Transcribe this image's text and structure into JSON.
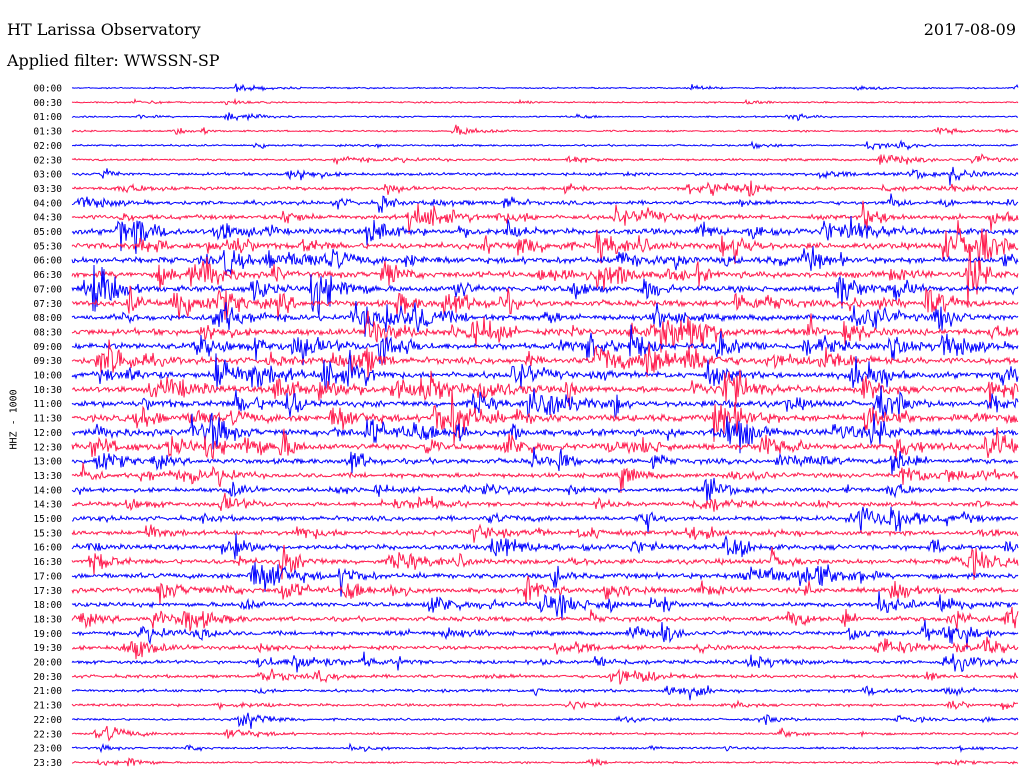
{
  "header": {
    "title": "HT Larissa Observatory",
    "date": "2017-08-09",
    "filter": "Applied filter: WWSSN-SP"
  },
  "channel_label": "HHZ - 1000",
  "colors": {
    "even_trace": "#0000ff",
    "odd_trace": "#ff1a4d",
    "background": "#ffffff"
  },
  "chart_data": {
    "type": "line",
    "title": "HT Larissa Observatory",
    "xlabel": "",
    "ylabel": "HHZ - 1000",
    "categories": [
      "00:00",
      "00:30",
      "01:00",
      "01:30",
      "02:00",
      "02:30",
      "03:00",
      "03:30",
      "04:00",
      "04:30",
      "05:00",
      "05:30",
      "06:00",
      "06:30",
      "07:00",
      "07:30",
      "08:00",
      "08:30",
      "09:00",
      "09:30",
      "10:00",
      "10:30",
      "11:00",
      "11:30",
      "12:00",
      "12:30",
      "13:00",
      "13:30",
      "14:00",
      "14:30",
      "15:00",
      "15:30",
      "16:00",
      "16:30",
      "17:00",
      "17:30",
      "18:00",
      "18:30",
      "19:00",
      "19:30",
      "20:00",
      "20:30",
      "21:00",
      "21:30",
      "22:00",
      "22:30",
      "23:00",
      "23:30"
    ],
    "activity_level": [
      0.08,
      0.1,
      0.1,
      0.12,
      0.15,
      0.2,
      0.3,
      0.35,
      0.45,
      0.55,
      0.7,
      0.75,
      0.8,
      0.8,
      0.75,
      0.75,
      0.75,
      0.8,
      0.8,
      0.8,
      0.8,
      0.8,
      0.8,
      0.85,
      0.8,
      0.8,
      0.65,
      0.55,
      0.5,
      0.5,
      0.55,
      0.55,
      0.6,
      0.6,
      0.65,
      0.6,
      0.55,
      0.55,
      0.5,
      0.45,
      0.4,
      0.35,
      0.3,
      0.25,
      0.2,
      0.2,
      0.18,
      0.15
    ],
    "color_cycle": [
      "blue",
      "red"
    ],
    "grid": false
  }
}
